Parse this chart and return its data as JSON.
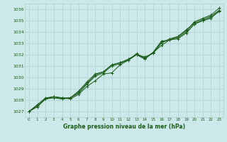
{
  "title": "Graphe pression niveau de la mer (hPa)",
  "bg_color": "#cce8e8",
  "grid_color": "#b0d0d0",
  "line_color": "#1a5c1a",
  "text_color": "#1a5c1a",
  "xlim": [
    -0.5,
    23.5
  ],
  "ylim": [
    1026.5,
    1036.5
  ],
  "yticks": [
    1027,
    1028,
    1029,
    1030,
    1031,
    1032,
    1033,
    1034,
    1035,
    1036
  ],
  "xticks": [
    0,
    1,
    2,
    3,
    4,
    5,
    6,
    7,
    8,
    9,
    10,
    11,
    12,
    13,
    14,
    15,
    16,
    17,
    18,
    19,
    20,
    21,
    22,
    23
  ],
  "series": [
    [
      1027.0,
      1027.4,
      1028.1,
      1028.3,
      1028.2,
      1028.1,
      1028.5,
      1029.2,
      1029.7,
      1030.3,
      1030.4,
      1031.1,
      1031.5,
      1032.1,
      1031.7,
      1032.2,
      1032.8,
      1033.3,
      1033.6,
      1034.1,
      1034.9,
      1035.2,
      1035.5,
      1036.1
    ],
    [
      1027.0,
      1027.5,
      1028.1,
      1028.3,
      1028.1,
      1028.2,
      1028.6,
      1029.4,
      1030.1,
      1030.4,
      1031.0,
      1031.2,
      1031.6,
      1032.0,
      1031.8,
      1032.1,
      1033.0,
      1033.4,
      1033.6,
      1034.2,
      1034.8,
      1035.1,
      1035.4,
      1035.9
    ],
    [
      1027.0,
      1027.5,
      1028.1,
      1028.2,
      1028.1,
      1028.2,
      1028.7,
      1029.5,
      1030.2,
      1030.5,
      1031.1,
      1031.3,
      1031.5,
      1032.0,
      1031.7,
      1032.2,
      1033.1,
      1033.3,
      1033.5,
      1034.0,
      1034.7,
      1035.0,
      1035.3,
      1035.8
    ],
    [
      1027.0,
      1027.6,
      1028.2,
      1028.3,
      1028.2,
      1028.2,
      1028.8,
      1029.6,
      1030.3,
      1030.5,
      1031.1,
      1031.3,
      1031.6,
      1032.0,
      1031.6,
      1032.2,
      1033.2,
      1033.3,
      1033.4,
      1033.9,
      1034.7,
      1035.0,
      1035.2,
      1035.9
    ]
  ]
}
